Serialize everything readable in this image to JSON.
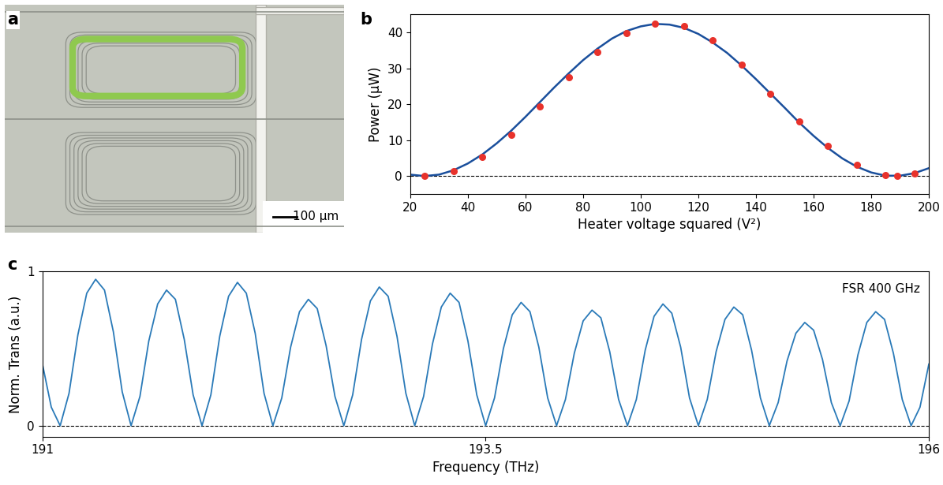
{
  "image": {
    "panel": "a",
    "scale_bar": "100 µm"
  },
  "chart_data": [
    {
      "type": "scatter",
      "panel": "b",
      "x_label": "Heater voltage squared (V²)",
      "y_label": "Power (µW)",
      "xlim": [
        20,
        200
      ],
      "xticks": [
        20,
        40,
        60,
        80,
        100,
        120,
        140,
        160,
        180,
        200
      ],
      "ylim": [
        -5,
        45
      ],
      "yticks": [
        0,
        10,
        20,
        30,
        40
      ],
      "reference_line": 0,
      "series": [
        {
          "type": "line",
          "color": "#1a4f9c",
          "line_style": "solid",
          "x": [
            20,
            25,
            30,
            35,
            40,
            45,
            50,
            55,
            60,
            65,
            70,
            75,
            80,
            85,
            90,
            95,
            100,
            105,
            110,
            115,
            120,
            125,
            130,
            135,
            140,
            145,
            150,
            155,
            160,
            165,
            170,
            175,
            180,
            185,
            190,
            195,
            200
          ],
          "values": [
            0.4,
            0.0,
            0.4,
            1.6,
            3.5,
            6.0,
            9.1,
            12.6,
            16.5,
            20.6,
            24.7,
            28.6,
            32.3,
            35.5,
            38.3,
            40.4,
            41.7,
            42.4,
            42.2,
            41.3,
            39.6,
            37.2,
            34.3,
            30.8,
            27.0,
            23.0,
            19.0,
            14.9,
            11.2,
            7.8,
            4.9,
            2.6,
            1.0,
            0.1,
            0.1,
            0.8,
            2.2
          ]
        },
        {
          "type": "scatter",
          "color": "#e8322b",
          "marker": "circle",
          "x": [
            25,
            35,
            45,
            55,
            65,
            75,
            85,
            95,
            105,
            115,
            125,
            135,
            145,
            155,
            165,
            175,
            185,
            189,
            195
          ],
          "values": [
            0.1,
            1.3,
            5.3,
            11.5,
            19.3,
            27.5,
            34.6,
            39.9,
            42.4,
            41.8,
            37.8,
            31.0,
            23.0,
            15.3,
            8.5,
            3.2,
            0.3,
            0.0,
            0.7
          ]
        }
      ]
    },
    {
      "type": "line",
      "panel": "c",
      "x_label": "Frequency (THz)",
      "y_label": "Norm. Trans (a.u.)",
      "annotations": [
        "FSR 400 GHz"
      ],
      "xlim": [
        191,
        196
      ],
      "xticks": [
        191,
        193.5,
        196
      ],
      "ylim": [
        -0.07,
        1.0
      ],
      "yticks": [
        0,
        1
      ],
      "reference_line": 0,
      "color": "#2a7ab8",
      "x": [
        191.0,
        191.05,
        191.1,
        191.15,
        191.2,
        191.25,
        191.3,
        191.35,
        191.4,
        191.45,
        191.5,
        191.55,
        191.6,
        191.65,
        191.7,
        191.75,
        191.8,
        191.85,
        191.9,
        191.95,
        192.0,
        192.05,
        192.1,
        192.15,
        192.2,
        192.25,
        192.3,
        192.35,
        192.4,
        192.45,
        192.5,
        192.55,
        192.6,
        192.65,
        192.7,
        192.75,
        192.8,
        192.85,
        192.9,
        192.95,
        193.0,
        193.05,
        193.1,
        193.15,
        193.2,
        193.25,
        193.3,
        193.35,
        193.4,
        193.45,
        193.5,
        193.55,
        193.6,
        193.65,
        193.7,
        193.75,
        193.8,
        193.85,
        193.9,
        193.95,
        194.0,
        194.05,
        194.1,
        194.15,
        194.2,
        194.25,
        194.3,
        194.35,
        194.4,
        194.45,
        194.5,
        194.55,
        194.6,
        194.65,
        194.7,
        194.75,
        194.8,
        194.85,
        194.9,
        194.95,
        195.0,
        195.05,
        195.1,
        195.15,
        195.2,
        195.25,
        195.3,
        195.35,
        195.4,
        195.45,
        195.5,
        195.55,
        195.6,
        195.65,
        195.7,
        195.75,
        195.8,
        195.85,
        195.9,
        195.95,
        196.0
      ],
      "values": [
        0.4,
        0.12,
        0,
        0.21,
        0.59,
        0.86,
        0.95,
        0.88,
        0.61,
        0.22,
        0,
        0.19,
        0.55,
        0.79,
        0.88,
        0.82,
        0.56,
        0.2,
        0,
        0.2,
        0.58,
        0.84,
        0.93,
        0.86,
        0.6,
        0.21,
        0,
        0.18,
        0.51,
        0.74,
        0.82,
        0.76,
        0.52,
        0.19,
        0,
        0.2,
        0.56,
        0.81,
        0.9,
        0.84,
        0.58,
        0.21,
        0,
        0.19,
        0.53,
        0.77,
        0.86,
        0.8,
        0.55,
        0.2,
        0,
        0.18,
        0.5,
        0.72,
        0.8,
        0.74,
        0.51,
        0.18,
        0,
        0.17,
        0.47,
        0.68,
        0.75,
        0.7,
        0.48,
        0.17,
        0,
        0.17,
        0.49,
        0.71,
        0.79,
        0.73,
        0.51,
        0.18,
        0,
        0.17,
        0.48,
        0.69,
        0.77,
        0.72,
        0.49,
        0.18,
        0,
        0.15,
        0.42,
        0.6,
        0.67,
        0.62,
        0.43,
        0.15,
        0,
        0.16,
        0.46,
        0.67,
        0.74,
        0.69,
        0.47,
        0.17,
        0,
        0.12,
        0.4
      ]
    }
  ]
}
